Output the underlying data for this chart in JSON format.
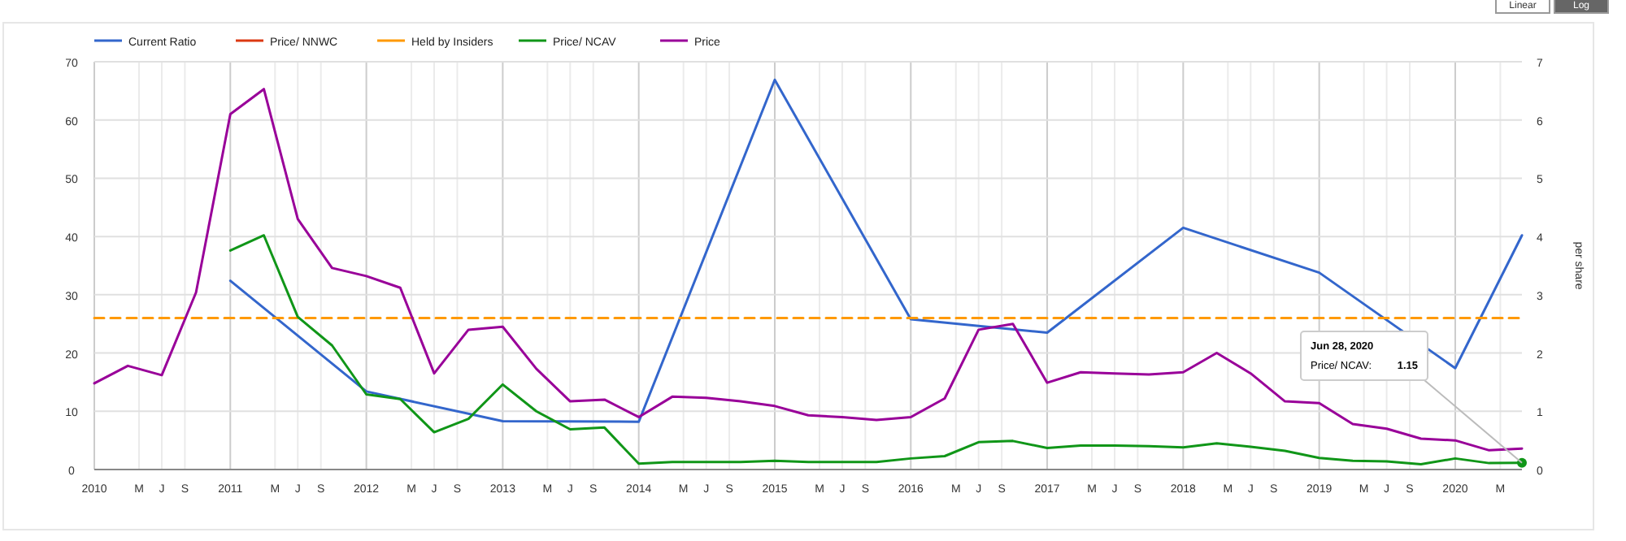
{
  "chart_data": {
    "type": "line",
    "y2label": "per share",
    "legend": "top left",
    "grid": true,
    "line_style": "solid",
    "marker": "none",
    "xlim": [
      "2010-01-01",
      "2020-06-28"
    ],
    "xticks": [
      {
        "value": "2010-01-01",
        "label": "2010"
      },
      {
        "value": "2010-05-01",
        "label": "M"
      },
      {
        "value": "2010-07-01",
        "label": "J"
      },
      {
        "value": "2010-09-01",
        "label": "S"
      },
      {
        "value": "2011-01-01",
        "label": "2011"
      },
      {
        "value": "2011-05-01",
        "label": "M"
      },
      {
        "value": "2011-07-01",
        "label": "J"
      },
      {
        "value": "2011-09-01",
        "label": "S"
      },
      {
        "value": "2012-01-01",
        "label": "2012"
      },
      {
        "value": "2012-05-01",
        "label": "M"
      },
      {
        "value": "2012-07-01",
        "label": "J"
      },
      {
        "value": "2012-09-01",
        "label": "S"
      },
      {
        "value": "2013-01-01",
        "label": "2013"
      },
      {
        "value": "2013-05-01",
        "label": "M"
      },
      {
        "value": "2013-07-01",
        "label": "J"
      },
      {
        "value": "2013-09-01",
        "label": "S"
      },
      {
        "value": "2014-01-01",
        "label": "2014"
      },
      {
        "value": "2014-05-01",
        "label": "M"
      },
      {
        "value": "2014-07-01",
        "label": "J"
      },
      {
        "value": "2014-09-01",
        "label": "S"
      },
      {
        "value": "2015-01-01",
        "label": "2015"
      },
      {
        "value": "2015-05-01",
        "label": "M"
      },
      {
        "value": "2015-07-01",
        "label": "J"
      },
      {
        "value": "2015-09-01",
        "label": "S"
      },
      {
        "value": "2016-01-01",
        "label": "2016"
      },
      {
        "value": "2016-05-01",
        "label": "M"
      },
      {
        "value": "2016-07-01",
        "label": "J"
      },
      {
        "value": "2016-09-01",
        "label": "S"
      },
      {
        "value": "2017-01-01",
        "label": "2017"
      },
      {
        "value": "2017-05-01",
        "label": "M"
      },
      {
        "value": "2017-07-01",
        "label": "J"
      },
      {
        "value": "2017-09-01",
        "label": "S"
      },
      {
        "value": "2018-01-01",
        "label": "2018"
      },
      {
        "value": "2018-05-01",
        "label": "M"
      },
      {
        "value": "2018-07-01",
        "label": "J"
      },
      {
        "value": "2018-09-01",
        "label": "S"
      },
      {
        "value": "2019-01-01",
        "label": "2019"
      },
      {
        "value": "2019-05-01",
        "label": "M"
      },
      {
        "value": "2019-07-01",
        "label": "J"
      },
      {
        "value": "2019-09-01",
        "label": "S"
      },
      {
        "value": "2020-01-01",
        "label": "2020"
      },
      {
        "value": "2020-05-01",
        "label": "M"
      }
    ],
    "ylim": [
      0,
      70
    ],
    "yticks": [
      0,
      10,
      20,
      30,
      40,
      50,
      60,
      70
    ],
    "y2lim": [
      0,
      7
    ],
    "y2ticks": [
      0,
      1,
      2,
      3,
      4,
      5,
      6,
      7
    ],
    "annotations": [
      "Jun 28, 2020",
      "Price/ NCAV:",
      {
        "text": "1.15",
        "x": "2020-06-28",
        "y": 1.15
      },
      "Linear",
      "Log"
    ],
    "series": [
      {
        "name": "Current Ratio",
        "color": "#3366cc",
        "x": [
          "2011-01-01",
          "2012-01-01",
          "2013-01-01",
          "2014-01-01",
          "2015-01-01",
          "2016-01-01",
          "2017-01-01",
          "2018-01-01",
          "2019-01-01",
          "2020-01-01",
          "2020-06-28"
        ],
        "values": [
          32.4,
          13.4,
          8.3,
          8.2,
          66.9,
          25.8,
          23.5,
          41.5,
          33.8,
          17.4,
          40.2
        ]
      },
      {
        "name": "Price/ NNWC",
        "color": "#dc3912"
      },
      {
        "name": "Held by Insiders",
        "color": "#ff9900",
        "line_style": "dashed",
        "x": [
          "2010-01-01",
          "2020-06-28"
        ],
        "values": [
          26,
          26
        ]
      },
      {
        "name": "Price/ NCAV",
        "color": "#109618",
        "x": [
          "2011-01-01",
          "2011-04-01",
          "2011-07-01",
          "2011-10-01",
          "2012-01-01",
          "2012-04-01",
          "2012-07-01",
          "2012-10-01",
          "2013-01-01",
          "2013-04-01",
          "2013-07-01",
          "2013-10-01",
          "2014-01-01",
          "2014-04-01",
          "2014-07-01",
          "2014-10-01",
          "2015-01-01",
          "2015-04-01",
          "2015-07-01",
          "2015-10-01",
          "2016-01-01",
          "2016-04-01",
          "2016-07-01",
          "2016-10-01",
          "2017-01-01",
          "2017-04-01",
          "2017-07-01",
          "2017-10-01",
          "2018-01-01",
          "2018-04-01",
          "2018-07-01",
          "2018-10-01",
          "2019-01-01",
          "2019-04-01",
          "2019-07-01",
          "2019-10-01",
          "2020-01-01",
          "2020-04-01",
          "2020-06-28"
        ],
        "values": [
          37.6,
          40.2,
          26.2,
          21.3,
          12.9,
          12.1,
          6.4,
          8.7,
          14.6,
          10,
          6.9,
          7.2,
          1,
          1.3,
          1.3,
          1.3,
          1.5,
          1.3,
          1.3,
          1.3,
          1.9,
          2.3,
          4.7,
          4.9,
          3.7,
          4.1,
          4.1,
          4,
          3.8,
          4.5,
          3.9,
          3.2,
          2,
          1.5,
          1.4,
          0.9,
          1.9,
          1.1,
          1.15
        ]
      },
      {
        "name": "Price",
        "color": "#990099",
        "axis": "y2",
        "x": [
          "2010-01-01",
          "2010-04-01",
          "2010-07-01",
          "2010-10-01",
          "2011-01-01",
          "2011-04-01",
          "2011-07-01",
          "2011-10-01",
          "2012-01-01",
          "2012-04-01",
          "2012-07-01",
          "2012-10-01",
          "2013-01-01",
          "2013-04-01",
          "2013-07-01",
          "2013-10-01",
          "2014-01-01",
          "2014-04-01",
          "2014-07-01",
          "2014-10-01",
          "2015-01-01",
          "2015-04-01",
          "2015-07-01",
          "2015-10-01",
          "2016-01-01",
          "2016-04-01",
          "2016-07-01",
          "2016-10-01",
          "2017-01-01",
          "2017-04-01",
          "2017-07-01",
          "2017-10-01",
          "2018-01-01",
          "2018-04-01",
          "2018-07-01",
          "2018-10-01",
          "2019-01-01",
          "2019-04-01",
          "2019-07-01",
          "2019-10-01",
          "2020-01-01",
          "2020-04-01",
          "2020-06-28"
        ],
        "values": [
          1.48,
          1.78,
          1.62,
          3.04,
          6.1,
          6.53,
          4.3,
          3.46,
          3.32,
          3.12,
          1.65,
          2.4,
          2.45,
          1.73,
          1.17,
          1.2,
          0.9,
          1.25,
          1.23,
          1.17,
          1.09,
          0.93,
          0.9,
          0.85,
          0.9,
          1.22,
          2.4,
          2.5,
          1.49,
          1.67,
          1.65,
          1.63,
          1.67,
          2,
          1.65,
          1.17,
          1.14,
          0.78,
          0.7,
          0.53,
          0.5,
          0.33,
          0.36
        ]
      }
    ]
  }
}
